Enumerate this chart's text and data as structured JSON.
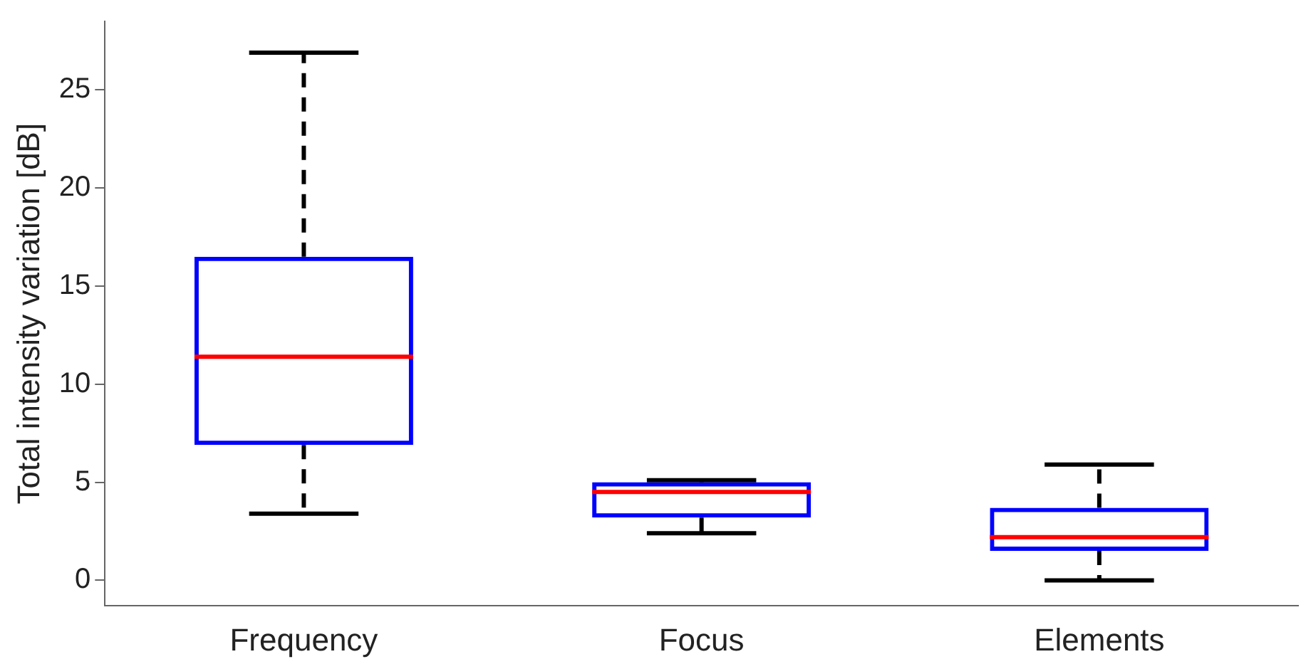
{
  "chart_data": {
    "type": "box",
    "ylabel": "Total intensity variation [dB]",
    "categories": [
      "Frequency",
      "Focus",
      "Elements"
    ],
    "color": "#0000ff",
    "boxes": [
      {
        "low": 3.4,
        "q1": 6.9,
        "median": 11.4,
        "q3": 16.5,
        "high": 26.9
      },
      {
        "low": 2.4,
        "q1": 3.2,
        "median": 4.5,
        "q3": 5.0,
        "high": 5.1
      },
      {
        "low": 0,
        "q1": 1.5,
        "median": 2.2,
        "q3": 3.7,
        "high": 5.9
      }
    ],
    "ylim": [
      -1.3,
      28.5
    ],
    "yticks": [
      0,
      5,
      10,
      15,
      20,
      25
    ],
    "grid": false,
    "legend": false
  }
}
